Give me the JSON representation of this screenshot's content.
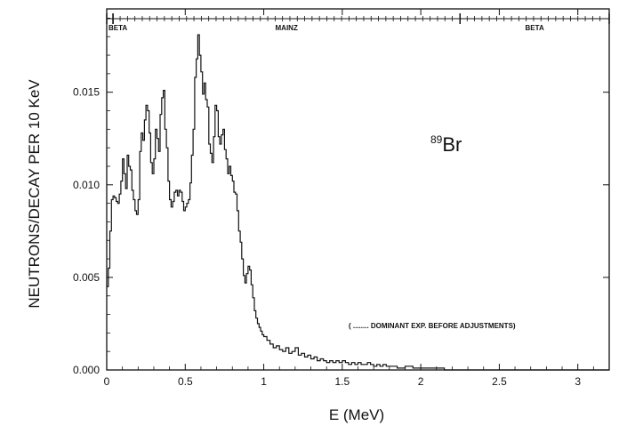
{
  "chart_data": {
    "type": "line",
    "ylabel": "NEUTRONS/DECAY PER 10 KeV",
    "xlabel": "E  (MeV)",
    "xlim": [
      0,
      3.2
    ],
    "ylim": [
      0,
      0.0195
    ],
    "x_ticks": [
      0,
      0.5,
      1,
      1.5,
      2,
      2.5,
      3
    ],
    "x_tick_labels": [
      "0",
      "0.5",
      "1",
      "1.5",
      "2",
      "2.5",
      "3"
    ],
    "y_ticks": [
      0,
      0.005,
      0.01,
      0.015
    ],
    "y_tick_labels": [
      "0.000",
      "0.005",
      "0.010",
      "0.015"
    ],
    "grid": false,
    "regions": [
      {
        "label": "BETA",
        "from": 0,
        "to": 0.04
      },
      {
        "label": "MAINZ",
        "from": 0.04,
        "to": 2.25
      },
      {
        "label": "BETA",
        "from": 2.25,
        "to": 3.2
      }
    ],
    "isotope": {
      "mass": "89",
      "symbol": "Br"
    },
    "annotation": "( ........ DOMINANT EXP. BEFORE ADJUSTMENTS)",
    "series": [
      {
        "x": [
          0,
          0.01,
          0.02,
          0.03,
          0.04,
          0.05,
          0.06,
          0.07,
          0.08,
          0.09,
          0.1,
          0.11,
          0.12,
          0.13,
          0.14,
          0.15,
          0.16,
          0.17,
          0.18,
          0.19,
          0.2,
          0.21,
          0.22,
          0.23,
          0.24,
          0.25,
          0.26,
          0.27,
          0.28,
          0.29,
          0.3,
          0.31,
          0.32,
          0.33,
          0.34,
          0.35,
          0.36,
          0.37,
          0.38,
          0.39,
          0.4,
          0.41,
          0.42,
          0.43,
          0.44,
          0.45,
          0.46,
          0.47,
          0.48,
          0.49,
          0.5,
          0.51,
          0.52,
          0.53,
          0.54,
          0.55,
          0.56,
          0.57,
          0.58,
          0.59,
          0.6,
          0.61,
          0.62,
          0.63,
          0.64,
          0.65,
          0.66,
          0.67,
          0.68,
          0.69,
          0.7,
          0.71,
          0.72,
          0.73,
          0.74,
          0.75,
          0.76,
          0.77,
          0.78,
          0.79,
          0.8,
          0.81,
          0.82,
          0.83,
          0.84,
          0.85,
          0.86,
          0.87,
          0.88,
          0.89,
          0.9,
          0.91,
          0.92,
          0.93,
          0.94,
          0.95,
          0.96,
          0.97,
          0.98,
          0.99,
          1.0,
          1.02,
          1.04,
          1.06,
          1.08,
          1.1,
          1.12,
          1.14,
          1.16,
          1.18,
          1.2,
          1.22,
          1.24,
          1.26,
          1.28,
          1.3,
          1.32,
          1.34,
          1.36,
          1.38,
          1.4,
          1.42,
          1.44,
          1.46,
          1.48,
          1.5,
          1.52,
          1.54,
          1.56,
          1.58,
          1.6,
          1.62,
          1.64,
          1.66,
          1.68,
          1.7,
          1.72,
          1.74,
          1.76,
          1.78,
          1.8,
          1.85,
          1.9,
          1.95,
          2.0,
          2.05,
          2.1,
          2.15,
          2.2,
          2.25
        ],
        "values": [
          0.0045,
          0.0055,
          0.0075,
          0.0092,
          0.0094,
          0.0093,
          0.0091,
          0.009,
          0.0095,
          0.0102,
          0.0114,
          0.0106,
          0.0098,
          0.0116,
          0.011,
          0.0108,
          0.0097,
          0.0092,
          0.0086,
          0.0084,
          0.0092,
          0.0118,
          0.0128,
          0.0124,
          0.0135,
          0.0143,
          0.014,
          0.0128,
          0.0112,
          0.0106,
          0.0114,
          0.013,
          0.0125,
          0.0118,
          0.0138,
          0.0147,
          0.0151,
          0.013,
          0.012,
          0.0102,
          0.0092,
          0.0088,
          0.0091,
          0.0096,
          0.0097,
          0.0094,
          0.0097,
          0.0096,
          0.0091,
          0.0086,
          0.0088,
          0.009,
          0.0092,
          0.0101,
          0.0116,
          0.013,
          0.0158,
          0.0168,
          0.0181,
          0.017,
          0.0161,
          0.0149,
          0.0155,
          0.0146,
          0.0142,
          0.0122,
          0.0117,
          0.0112,
          0.0126,
          0.0143,
          0.014,
          0.0126,
          0.0122,
          0.0127,
          0.013,
          0.0119,
          0.0114,
          0.0106,
          0.011,
          0.0105,
          0.0102,
          0.0096,
          0.0095,
          0.0086,
          0.0075,
          0.0069,
          0.006,
          0.0051,
          0.0047,
          0.0052,
          0.0056,
          0.0054,
          0.0046,
          0.0039,
          0.0032,
          0.0028,
          0.0025,
          0.0023,
          0.0021,
          0.0019,
          0.0018,
          0.0016,
          0.0014,
          0.0012,
          0.0013,
          0.0011,
          0.001,
          0.0012,
          0.0009,
          0.001,
          0.0012,
          0.0008,
          0.0009,
          0.0007,
          0.0008,
          0.0006,
          0.0007,
          0.0005,
          0.0006,
          0.0005,
          0.0004,
          0.0005,
          0.0004,
          0.0005,
          0.0004,
          0.0005,
          0.0004,
          0.0003,
          0.0004,
          0.0003,
          0.0004,
          0.0003,
          0.0003,
          0.0004,
          0.0003,
          0.0002,
          0.0003,
          0.0002,
          0.0003,
          0.0002,
          0.0002,
          0.0001,
          0.0002,
          0.0001,
          0.0001,
          0.0001,
          0.0001,
          0.0,
          0.0,
          0.0
        ]
      }
    ]
  }
}
